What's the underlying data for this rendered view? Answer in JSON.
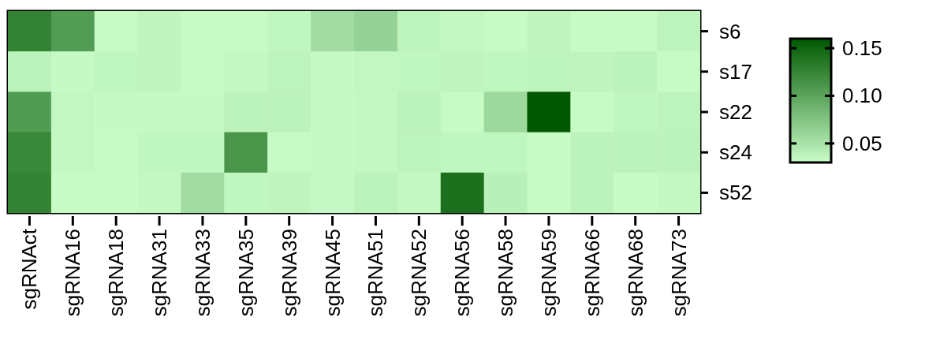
{
  "chart_data": {
    "type": "heatmap",
    "categories": [
      "sgRNAct",
      "sgRNA16",
      "sgRNA18",
      "sgRNA31",
      "sgRNA33",
      "sgRNA35",
      "sgRNA39",
      "sgRNA45",
      "sgRNA51",
      "sgRNA52",
      "sgRNA56",
      "sgRNA58",
      "sgRNA59",
      "sgRNA66",
      "sgRNA68",
      "sgRNA73"
    ],
    "y_categories": [
      "s6",
      "s17",
      "s22",
      "s24",
      "s52"
    ],
    "cells": [
      [
        0.126,
        0.106,
        0.031,
        0.036,
        0.031,
        0.031,
        0.035,
        0.055,
        0.063,
        0.037,
        0.034,
        0.031,
        0.036,
        0.031,
        0.031,
        0.037
      ],
      [
        0.038,
        0.032,
        0.035,
        0.036,
        0.031,
        0.033,
        0.037,
        0.032,
        0.034,
        0.035,
        0.036,
        0.035,
        0.037,
        0.036,
        0.038,
        0.031
      ],
      [
        0.107,
        0.034,
        0.032,
        0.032,
        0.032,
        0.038,
        0.038,
        0.032,
        0.033,
        0.038,
        0.031,
        0.058,
        0.16,
        0.031,
        0.035,
        0.037
      ],
      [
        0.122,
        0.034,
        0.031,
        0.035,
        0.035,
        0.112,
        0.031,
        0.032,
        0.033,
        0.037,
        0.035,
        0.035,
        0.031,
        0.038,
        0.038,
        0.038
      ],
      [
        0.126,
        0.031,
        0.031,
        0.033,
        0.055,
        0.035,
        0.036,
        0.032,
        0.038,
        0.033,
        0.142,
        0.04,
        0.031,
        0.038,
        0.031,
        0.033
      ]
    ],
    "clim": [
      0.03,
      0.16
    ],
    "cticks": [
      {
        "value": 0.05,
        "label": "0.05"
      },
      {
        "value": 0.1,
        "label": "0.10"
      },
      {
        "value": 0.15,
        "label": "0.15"
      }
    ]
  }
}
